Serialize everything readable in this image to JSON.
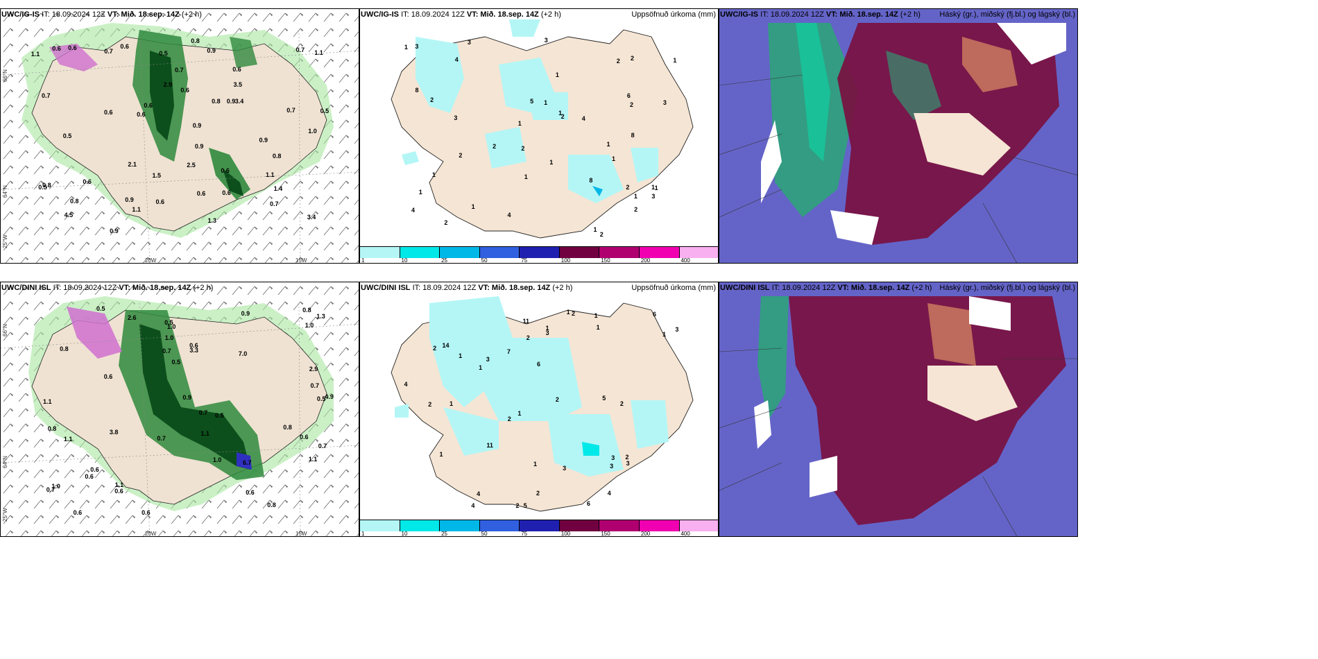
{
  "panels_top": {
    "p1": {
      "model": "UWC/IG-IS",
      "it": "IT: 18.09.2024 12Z",
      "vt": "VT: Mið. 18.sep. 14Z",
      "lead": "(+2 h)"
    },
    "p2": {
      "model": "UWC/IG-IS",
      "it": "IT: 18.09.2024 12Z",
      "vt": "VT: Mið. 18.sep. 14Z",
      "lead": "(+2 h)",
      "right": "Uppsöfnuð úrkoma (mm)"
    },
    "p3": {
      "model": "UWC/IG-IS",
      "it": "IT: 18.09.2024 12Z",
      "vt": "VT: Mið. 18.sep. 14Z",
      "lead": "(+2 h)",
      "right": "Háský (gr.), miðský (fj.bl.) og lágský (bl.)"
    }
  },
  "panels_bottom": {
    "p1": {
      "model": "UWC/DINI ISL",
      "it": "IT: 18.09.2024 12Z",
      "vt": "VT: Mið. 18.sep. 14Z",
      "lead": "(+2 h)"
    },
    "p2": {
      "model": "UWC/DINI ISL",
      "it": "IT: 18.09.2024 12Z",
      "vt": "VT: Mið. 18.sep. 14Z",
      "lead": "(+2 h)",
      "right": "Uppsöfnuð úrkoma (mm)"
    },
    "p3": {
      "model": "UWC/DINI ISL",
      "it": "IT: 18.09.2024 12Z",
      "vt": "VT: Mið. 18.sep. 14Z",
      "lead": "(+2 h)",
      "right": "Háský (gr.), miðský (fj.bl.) og lágský (bl.)"
    }
  },
  "axes": {
    "lat66": "66°N",
    "lat64": "64°N",
    "lon25": "25°W",
    "lon20": "20W",
    "lon15": "15W"
  },
  "colorbar": {
    "ticks": [
      "1",
      "10",
      "25",
      "50",
      "75",
      "100",
      "150",
      "200",
      "400"
    ],
    "colors": [
      "#b4f6f6",
      "#00e8e8",
      "#00b8e8",
      "#3060e0",
      "#2020b0",
      "#700040",
      "#b00070",
      "#f000b0",
      "#f8b0f0"
    ]
  },
  "labels_top_left": [
    "0.6",
    "0.9",
    "0.6",
    "0.6",
    "0.8",
    "0.7",
    "1.0",
    "0.6",
    "0.5",
    "0.9",
    "1.1",
    "1.4",
    "0.9",
    "0.8",
    "2.5",
    "1.5",
    "0.9",
    "0.7",
    "2.1",
    "0.6",
    "0.6",
    "3.5",
    "1.1",
    "3.4",
    "0.7",
    "0.6",
    "0.9",
    "0.5",
    "0.5",
    "1.3",
    "3.4",
    "0.5",
    "0.7",
    "4.5",
    "0.6",
    "0.6",
    "0.6",
    "0.6",
    "0.7",
    "0.8",
    "0.8",
    "0.7",
    "1.1",
    "1.1",
    "0.9",
    "0.6",
    "0.9",
    "0.8",
    "2.9",
    "0.6"
  ],
  "labels_top_mid": [
    "1",
    "1",
    "1",
    "2",
    "2",
    "1",
    "1",
    "1",
    "2",
    "3",
    "2",
    "2",
    "1",
    "1",
    "2",
    "8",
    "4",
    "1",
    "4",
    "2",
    "1",
    "3",
    "2",
    "6",
    "2",
    "8",
    "3",
    "1",
    "4",
    "3",
    "1",
    "5",
    "8",
    "2",
    "2",
    "4",
    "1",
    "1",
    "3",
    "2",
    "3",
    "1",
    "1",
    "1"
  ],
  "labels_bottom_left": [
    "0.6",
    "0.5",
    "0.6",
    "0.6",
    "0.7",
    "1.0",
    "0.8",
    "0.6",
    "1.0",
    "0.5",
    "0.7",
    "0.7",
    "1.1",
    "0.5",
    "0.9",
    "1.3",
    "0.6",
    "1.0",
    "0.6",
    "0.6",
    "0.5",
    "0.8",
    "2.9",
    "2.6",
    "4.9",
    "3.8",
    "0.8",
    "3.3",
    "7.0",
    "6.7",
    "1.0",
    "0.7",
    "0.8",
    "1.1",
    "0.6",
    "1.1",
    "1.0",
    "0.7",
    "0.6",
    "0.5",
    "1.1",
    "0.9",
    "0.8",
    "0.7",
    "1.1"
  ],
  "labels_bottom_mid": [
    "1",
    "1",
    "1",
    "2",
    "1",
    "1",
    "2",
    "2",
    "1",
    "3",
    "2",
    "3",
    "3",
    "3",
    "11",
    "2",
    "4",
    "3",
    "6",
    "1",
    "5",
    "5",
    "6",
    "4",
    "4",
    "7",
    "11",
    "14",
    "2",
    "2",
    "3",
    "1",
    "2",
    "1",
    "6",
    "4",
    "3",
    "2",
    "1",
    "2",
    "1"
  ]
}
